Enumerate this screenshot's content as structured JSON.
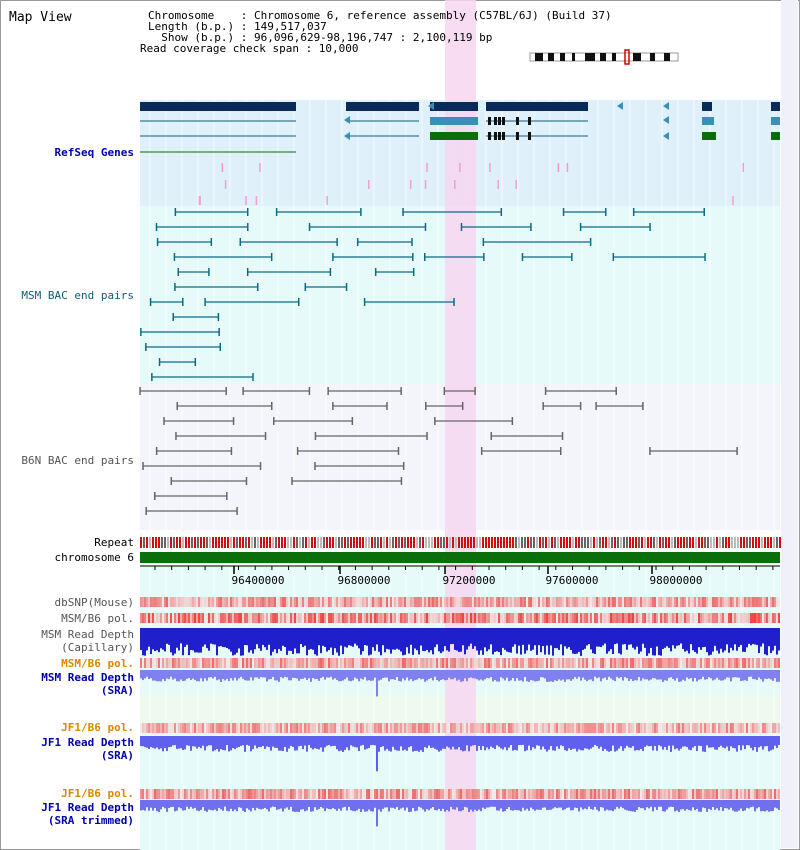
{
  "view_title": "Map View",
  "info": {
    "chromosome_line": "Chromosome    : Chromosome 6, reference assembly (C57BL/6J) (Build 37)",
    "length_line": "Length (b.p.) : 149,517,037",
    "show_line": "  Show (b.p.) : 96,096,629-98,196,747 : 2,100,119 bp",
    "coverage_line": "Read coverage check span : 10,000"
  },
  "tracks": {
    "refseq": "RefSeq Genes",
    "msm_bac": "MSM BAC end pairs",
    "b6n_bac": "B6N BAC end pairs",
    "repeat": "Repeat",
    "chromosome": "chromosome 6",
    "dbsnp": "dbSNP(Mouse)",
    "msm_b6_pol_1": "MSM/B6 pol.",
    "msm_depth_cap_1": "MSM Read Depth",
    "msm_depth_cap_2": "(Capillary)",
    "msm_b6_pol_2": "MSM/B6 pol.",
    "msm_depth_sra_1": "MSM Read Depth",
    "msm_depth_sra_2": "(SRA)",
    "jf1_b6_pol_1": "JF1/B6 pol.",
    "jf1_depth_sra_1": "JF1 Read Depth",
    "jf1_depth_sra_2": "(SRA)",
    "jf1_b6_pol_2": "JF1/B6 pol.",
    "jf1_depth_trim_1": "JF1 Read Depth",
    "jf1_depth_trim_2": "(SRA trimmed)"
  },
  "ruler": {
    "ticks": [
      "96400000",
      "96800000",
      "97200000",
      "97600000",
      "98000000"
    ]
  },
  "colors": {
    "refseq_bg": "#dff0fa",
    "bac_bg": "#e6fafa",
    "highlight": "#f6d6f0",
    "chromosome_bar": "#0a6e0a",
    "depth_dark": "#1f1fcc",
    "depth_light": "#8080f0",
    "gene_dark": "#0a2a5c",
    "gene_mid": "#3a8fb8",
    "gene_green": "#0a6e0a"
  }
}
